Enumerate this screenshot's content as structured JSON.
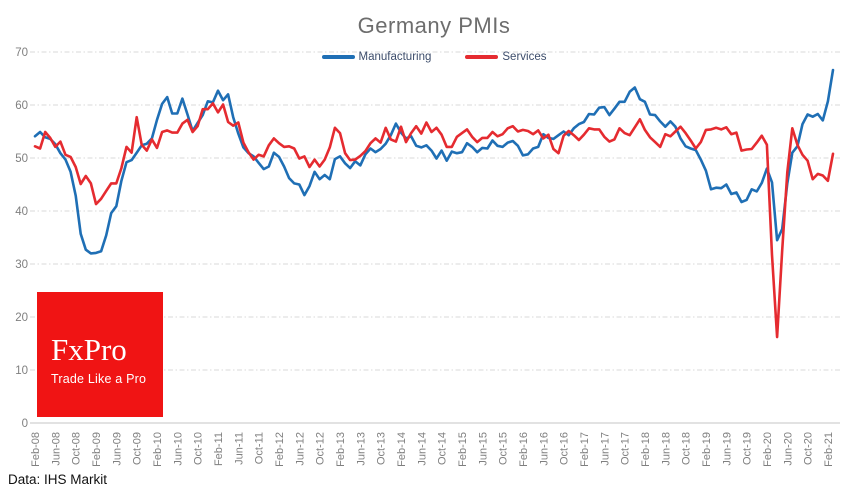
{
  "page": {
    "source_note": "Data: IHS Markit"
  },
  "logo": {
    "name": "FxPro",
    "tagline": "Trade Like a Pro",
    "bg_color": "#f01414"
  },
  "chart_data": {
    "type": "line",
    "title": "Germany PMIs",
    "frequency": "monthly",
    "x_start": "Feb-08",
    "x_end": "Mar-21",
    "ylim": [
      0,
      70
    ],
    "y_ticks": [
      0,
      10,
      20,
      30,
      40,
      50,
      60,
      70
    ],
    "grid": "horizontal-dashed",
    "legend_position": "top-center",
    "x_tick_labels": [
      "Feb-08",
      "Jun-08",
      "Oct-08",
      "Feb-09",
      "Jun-09",
      "Oct-09",
      "Feb-10",
      "Jun-10",
      "Oct-10",
      "Feb-11",
      "Jun-11",
      "Oct-11",
      "Feb-12",
      "Jun-12",
      "Oct-12",
      "Feb-13",
      "Jun-13",
      "Oct-13",
      "Feb-14",
      "Jun-14",
      "Oct-14",
      "Feb-15",
      "Jun-15",
      "Oct-15",
      "Feb-16",
      "Jun-16",
      "Oct-16",
      "Feb-17",
      "Jun-17",
      "Oct-17",
      "Feb-18",
      "Jun-18",
      "Oct-18",
      "Feb-19",
      "Jun-19",
      "Oct-19",
      "Feb-20",
      "Jun-20",
      "Oct-20",
      "Feb-21"
    ],
    "series": [
      {
        "name": "Manufacturing",
        "color": "#1f6fb5",
        "values": [
          54.1,
          54.9,
          53.9,
          53.6,
          52.6,
          50.9,
          49.7,
          47.4,
          42.9,
          35.7,
          32.7,
          32.0,
          32.1,
          32.4,
          35.4,
          39.6,
          40.9,
          45.7,
          49.2,
          49.6,
          51.0,
          52.4,
          52.7,
          53.7,
          57.2,
          60.2,
          61.5,
          58.4,
          58.4,
          61.2,
          58.2,
          55.1,
          56.6,
          58.1,
          60.7,
          60.5,
          62.7,
          60.9,
          62.0,
          57.7,
          54.6,
          52.0,
          50.9,
          50.3,
          49.1,
          47.9,
          48.4,
          51.0,
          50.2,
          48.4,
          46.2,
          45.2,
          45.0,
          43.0,
          44.7,
          47.4,
          46.0,
          46.8,
          46.0,
          49.8,
          50.3,
          49.0,
          48.1,
          49.4,
          48.6,
          50.7,
          51.8,
          51.1,
          51.7,
          52.7,
          54.3,
          56.5,
          54.8,
          53.7,
          54.1,
          52.3,
          52.0,
          52.4,
          51.4,
          49.9,
          51.4,
          49.5,
          51.2,
          50.9,
          51.1,
          52.8,
          52.1,
          51.1,
          51.9,
          51.8,
          53.3,
          52.3,
          52.1,
          52.9,
          53.2,
          52.3,
          50.5,
          50.7,
          51.8,
          52.1,
          54.5,
          53.8,
          53.6,
          54.3,
          55.0,
          54.3,
          55.6,
          56.4,
          56.8,
          58.3,
          58.2,
          59.5,
          59.6,
          58.1,
          59.3,
          60.6,
          60.6,
          62.5,
          63.3,
          61.1,
          60.6,
          58.2,
          58.1,
          56.9,
          55.9,
          56.9,
          55.9,
          53.7,
          52.2,
          51.8,
          51.5,
          49.7,
          47.6,
          44.1,
          44.4,
          44.3,
          45.0,
          43.2,
          43.5,
          41.7,
          42.1,
          44.1,
          43.7,
          45.3,
          48.0,
          45.4,
          34.5,
          36.6,
          45.2,
          51.0,
          52.2,
          56.4,
          58.2,
          57.8,
          58.3,
          57.1,
          60.7,
          66.6
        ]
      },
      {
        "name": "Services",
        "color": "#e52b30",
        "values": [
          52.2,
          51.8,
          54.9,
          53.8,
          52.1,
          53.1,
          50.6,
          50.2,
          48.3,
          45.1,
          46.6,
          45.2,
          41.3,
          42.3,
          43.8,
          45.2,
          45.2,
          48.1,
          52.1,
          51.0,
          57.7,
          52.5,
          51.4,
          53.5,
          51.9,
          54.9,
          55.2,
          54.8,
          54.8,
          56.5,
          57.2,
          54.9,
          56.0,
          59.2,
          59.2,
          60.3,
          58.6,
          60.1,
          56.8,
          56.1,
          56.7,
          52.9,
          51.1,
          49.7,
          50.6,
          50.3,
          52.4,
          53.7,
          52.8,
          52.1,
          52.2,
          51.8,
          49.9,
          50.3,
          48.3,
          49.7,
          48.4,
          49.7,
          52.0,
          55.7,
          54.7,
          50.9,
          49.6,
          49.7,
          50.4,
          51.3,
          52.8,
          53.7,
          52.9,
          55.7,
          53.5,
          53.1,
          55.9,
          53.0,
          54.7,
          56.0,
          54.6,
          56.7,
          54.9,
          55.7,
          54.4,
          52.1,
          52.1,
          54.0,
          54.7,
          55.4,
          54.0,
          53.0,
          53.8,
          53.8,
          54.9,
          54.1,
          54.5,
          55.6,
          56.0,
          55.0,
          55.3,
          55.1,
          54.5,
          55.2,
          53.7,
          54.4,
          51.7,
          50.9,
          54.2,
          55.1,
          54.3,
          53.4,
          54.4,
          55.6,
          55.4,
          55.4,
          54.0,
          53.1,
          53.5,
          55.6,
          54.7,
          54.3,
          55.8,
          57.3,
          55.3,
          53.9,
          53.0,
          52.1,
          54.5,
          54.1,
          55.0,
          55.9,
          54.7,
          53.3,
          51.8,
          53.0,
          55.3,
          55.4,
          55.7,
          55.4,
          55.8,
          54.5,
          54.8,
          51.4,
          51.6,
          51.7,
          52.9,
          54.2,
          52.5,
          31.7,
          16.2,
          32.6,
          47.3,
          55.6,
          52.5,
          50.6,
          49.5,
          46.0,
          47.0,
          46.7,
          45.7,
          50.8
        ]
      }
    ]
  }
}
